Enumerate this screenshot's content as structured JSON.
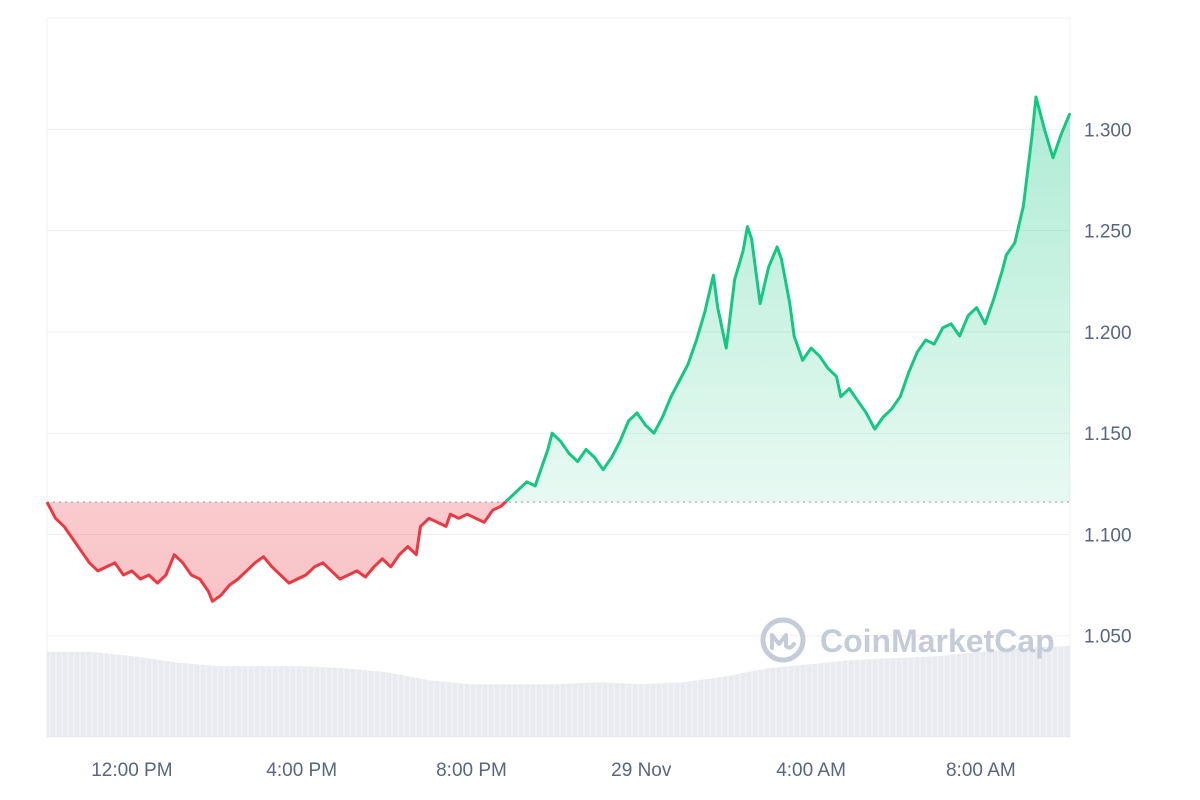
{
  "chart_data": {
    "type": "area",
    "baseline": 1.116,
    "ylim": [
      1.0,
      1.355
    ],
    "y_ticks": [
      1.05,
      1.1,
      1.15,
      1.2,
      1.25,
      1.3
    ],
    "y_tick_labels": [
      "1.050",
      "1.100",
      "1.150",
      "1.200",
      "1.250",
      "1.300"
    ],
    "x_ticks": [
      {
        "label": "12:00 PM",
        "hour": 2.0
      },
      {
        "label": "4:00 PM",
        "hour": 6.0
      },
      {
        "label": "8:00 PM",
        "hour": 10.0
      },
      {
        "label": "29 Nov",
        "hour": 14.0
      },
      {
        "label": "4:00 AM",
        "hour": 18.0
      },
      {
        "label": "8:00 AM",
        "hour": 22.0
      }
    ],
    "xlim_hours": [
      0,
      24.1
    ],
    "price_series": [
      [
        0.0,
        1.116
      ],
      [
        0.2,
        1.108
      ],
      [
        0.4,
        1.104
      ],
      [
        0.6,
        1.098
      ],
      [
        0.8,
        1.092
      ],
      [
        1.0,
        1.086
      ],
      [
        1.2,
        1.082
      ],
      [
        1.4,
        1.084
      ],
      [
        1.6,
        1.086
      ],
      [
        1.8,
        1.08
      ],
      [
        2.0,
        1.082
      ],
      [
        2.2,
        1.078
      ],
      [
        2.4,
        1.08
      ],
      [
        2.6,
        1.076
      ],
      [
        2.8,
        1.08
      ],
      [
        3.0,
        1.09
      ],
      [
        3.2,
        1.086
      ],
      [
        3.4,
        1.08
      ],
      [
        3.6,
        1.078
      ],
      [
        3.8,
        1.072
      ],
      [
        3.9,
        1.067
      ],
      [
        4.1,
        1.07
      ],
      [
        4.3,
        1.075
      ],
      [
        4.5,
        1.078
      ],
      [
        4.7,
        1.082
      ],
      [
        4.9,
        1.086
      ],
      [
        5.1,
        1.089
      ],
      [
        5.3,
        1.084
      ],
      [
        5.5,
        1.08
      ],
      [
        5.7,
        1.076
      ],
      [
        5.9,
        1.078
      ],
      [
        6.1,
        1.08
      ],
      [
        6.3,
        1.084
      ],
      [
        6.5,
        1.086
      ],
      [
        6.7,
        1.082
      ],
      [
        6.9,
        1.078
      ],
      [
        7.1,
        1.08
      ],
      [
        7.3,
        1.082
      ],
      [
        7.5,
        1.079
      ],
      [
        7.7,
        1.084
      ],
      [
        7.9,
        1.088
      ],
      [
        8.1,
        1.084
      ],
      [
        8.3,
        1.09
      ],
      [
        8.5,
        1.094
      ],
      [
        8.7,
        1.09
      ],
      [
        8.8,
        1.104
      ],
      [
        9.0,
        1.108
      ],
      [
        9.2,
        1.106
      ],
      [
        9.4,
        1.104
      ],
      [
        9.5,
        1.11
      ],
      [
        9.7,
        1.108
      ],
      [
        9.9,
        1.11
      ],
      [
        10.1,
        1.108
      ],
      [
        10.3,
        1.106
      ],
      [
        10.5,
        1.112
      ],
      [
        10.7,
        1.114
      ],
      [
        10.9,
        1.118
      ],
      [
        11.1,
        1.122
      ],
      [
        11.3,
        1.126
      ],
      [
        11.5,
        1.124
      ],
      [
        11.6,
        1.13
      ],
      [
        11.8,
        1.142
      ],
      [
        11.9,
        1.15
      ],
      [
        12.1,
        1.146
      ],
      [
        12.3,
        1.14
      ],
      [
        12.5,
        1.136
      ],
      [
        12.7,
        1.142
      ],
      [
        12.9,
        1.138
      ],
      [
        13.1,
        1.132
      ],
      [
        13.3,
        1.138
      ],
      [
        13.5,
        1.146
      ],
      [
        13.7,
        1.156
      ],
      [
        13.9,
        1.16
      ],
      [
        14.1,
        1.154
      ],
      [
        14.3,
        1.15
      ],
      [
        14.5,
        1.158
      ],
      [
        14.7,
        1.168
      ],
      [
        14.9,
        1.176
      ],
      [
        15.1,
        1.184
      ],
      [
        15.3,
        1.196
      ],
      [
        15.5,
        1.21
      ],
      [
        15.7,
        1.228
      ],
      [
        15.8,
        1.212
      ],
      [
        16.0,
        1.192
      ],
      [
        16.2,
        1.226
      ],
      [
        16.4,
        1.24
      ],
      [
        16.5,
        1.252
      ],
      [
        16.6,
        1.246
      ],
      [
        16.8,
        1.214
      ],
      [
        17.0,
        1.232
      ],
      [
        17.2,
        1.242
      ],
      [
        17.3,
        1.236
      ],
      [
        17.5,
        1.214
      ],
      [
        17.6,
        1.198
      ],
      [
        17.8,
        1.186
      ],
      [
        18.0,
        1.192
      ],
      [
        18.2,
        1.188
      ],
      [
        18.4,
        1.182
      ],
      [
        18.6,
        1.178
      ],
      [
        18.7,
        1.168
      ],
      [
        18.9,
        1.172
      ],
      [
        19.1,
        1.166
      ],
      [
        19.3,
        1.16
      ],
      [
        19.5,
        1.152
      ],
      [
        19.7,
        1.158
      ],
      [
        19.9,
        1.162
      ],
      [
        20.1,
        1.168
      ],
      [
        20.3,
        1.18
      ],
      [
        20.5,
        1.19
      ],
      [
        20.7,
        1.196
      ],
      [
        20.9,
        1.194
      ],
      [
        21.1,
        1.202
      ],
      [
        21.3,
        1.204
      ],
      [
        21.5,
        1.198
      ],
      [
        21.7,
        1.208
      ],
      [
        21.9,
        1.212
      ],
      [
        22.1,
        1.204
      ],
      [
        22.3,
        1.216
      ],
      [
        22.5,
        1.23
      ],
      [
        22.6,
        1.238
      ],
      [
        22.8,
        1.244
      ],
      [
        23.0,
        1.262
      ],
      [
        23.2,
        1.296
      ],
      [
        23.3,
        1.316
      ],
      [
        23.5,
        1.3
      ],
      [
        23.7,
        1.286
      ],
      [
        23.9,
        1.298
      ],
      [
        24.1,
        1.308
      ]
    ],
    "volume_series": [
      [
        0.0,
        1.042
      ],
      [
        1.0,
        1.042
      ],
      [
        2.0,
        1.04
      ],
      [
        3.0,
        1.037
      ],
      [
        4.0,
        1.035
      ],
      [
        5.0,
        1.035
      ],
      [
        6.0,
        1.035
      ],
      [
        7.0,
        1.034
      ],
      [
        8.0,
        1.032
      ],
      [
        9.0,
        1.028
      ],
      [
        10.0,
        1.026
      ],
      [
        11.0,
        1.026
      ],
      [
        12.0,
        1.026
      ],
      [
        13.0,
        1.027
      ],
      [
        14.0,
        1.026
      ],
      [
        15.0,
        1.027
      ],
      [
        16.0,
        1.03
      ],
      [
        17.0,
        1.034
      ],
      [
        18.0,
        1.036
      ],
      [
        19.0,
        1.038
      ],
      [
        20.0,
        1.039
      ],
      [
        21.0,
        1.04
      ],
      [
        22.0,
        1.042
      ],
      [
        23.0,
        1.044
      ],
      [
        24.1,
        1.045
      ]
    ],
    "colors": {
      "up_line": "#16c784",
      "up_fill": "#16c784",
      "down_line": "#ea3943",
      "down_fill": "#ea3943",
      "volume": "#e3e6ec",
      "grid": "#eef0f3",
      "baseline": "#98a0ac"
    },
    "grid": true,
    "legend": "none"
  },
  "watermark": {
    "text": "CoinMarketCap",
    "icon": "coinmarketcap-logo-icon"
  }
}
